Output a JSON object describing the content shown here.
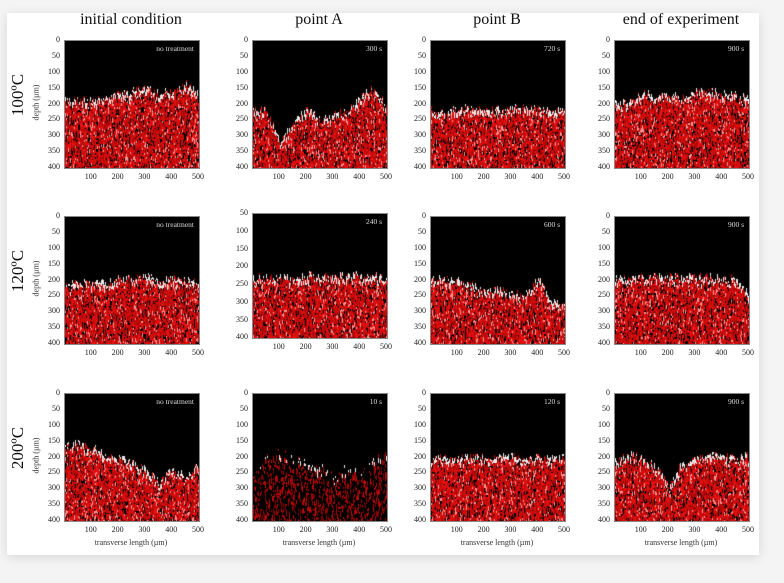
{
  "columns": [
    "initial condition",
    "point A",
    "point B",
    "end of experiment"
  ],
  "rows": [
    "100ºC",
    "120ºC",
    "200ºC"
  ],
  "y_axis_label": "depth (µm)",
  "x_axis_label": "transverse length (µm)",
  "x_ticks": [
    100,
    200,
    300,
    400,
    500
  ],
  "colors": {
    "signal": "#ff1a1a",
    "surface": "#f0f0f0",
    "background": "#000000"
  },
  "panels": [
    {
      "row": 0,
      "col": 0,
      "note": "no treatment",
      "ylim": [
        0,
        400
      ],
      "surface": [
        190,
        185,
        190,
        180,
        165,
        160,
        145,
        165,
        160,
        135,
        170
      ]
    },
    {
      "row": 0,
      "col": 1,
      "note": "300 s",
      "ylim": [
        0,
        400
      ],
      "surface": [
        210,
        220,
        320,
        260,
        215,
        250,
        230,
        225,
        180,
        145,
        210
      ]
    },
    {
      "row": 0,
      "col": 2,
      "note": "720 s",
      "ylim": [
        0,
        400
      ],
      "surface": [
        215,
        225,
        215,
        210,
        215,
        210,
        215,
        205,
        210,
        220,
        215
      ]
    },
    {
      "row": 0,
      "col": 3,
      "note": "900 s",
      "ylim": [
        0,
        400
      ],
      "surface": [
        200,
        190,
        165,
        170,
        170,
        175,
        160,
        160,
        165,
        165,
        185
      ]
    },
    {
      "row": 1,
      "col": 0,
      "note": "no treatment",
      "ylim": [
        0,
        400
      ],
      "surface": [
        215,
        210,
        200,
        210,
        195,
        195,
        185,
        205,
        195,
        200,
        210
      ]
    },
    {
      "row": 1,
      "col": 1,
      "note": "240 s",
      "ylim": [
        50,
        400
      ],
      "surface": [
        230,
        230,
        230,
        230,
        225,
        225,
        230,
        225,
        225,
        225,
        230
      ]
    },
    {
      "row": 1,
      "col": 2,
      "note": "600 s",
      "ylim": [
        0,
        400
      ],
      "surface": [
        190,
        200,
        195,
        215,
        240,
        225,
        240,
        250,
        195,
        270,
        275
      ]
    },
    {
      "row": 1,
      "col": 3,
      "note": "900 s",
      "ylim": [
        0,
        400
      ],
      "surface": [
        190,
        190,
        190,
        190,
        190,
        190,
        190,
        190,
        190,
        195,
        250
      ]
    },
    {
      "row": 2,
      "col": 0,
      "note": "no treatment",
      "ylim": [
        0,
        400
      ],
      "surface": [
        165,
        155,
        170,
        190,
        200,
        220,
        240,
        280,
        240,
        260,
        220
      ]
    },
    {
      "row": 2,
      "col": 1,
      "note": "10 s",
      "ylim": [
        0,
        400
      ],
      "surface": [
        250,
        200,
        185,
        200,
        215,
        230,
        260,
        230,
        240,
        215,
        180
      ],
      "sparse": true
    },
    {
      "row": 2,
      "col": 2,
      "note": "120 s",
      "ylim": [
        0,
        400
      ],
      "surface": [
        200,
        200,
        200,
        200,
        200,
        200,
        200,
        200,
        200,
        200,
        200
      ]
    },
    {
      "row": 2,
      "col": 3,
      "note": "900 s",
      "ylim": [
        0,
        400
      ],
      "surface": [
        210,
        190,
        200,
        230,
        290,
        220,
        200,
        190,
        195,
        200,
        195
      ]
    }
  ]
}
